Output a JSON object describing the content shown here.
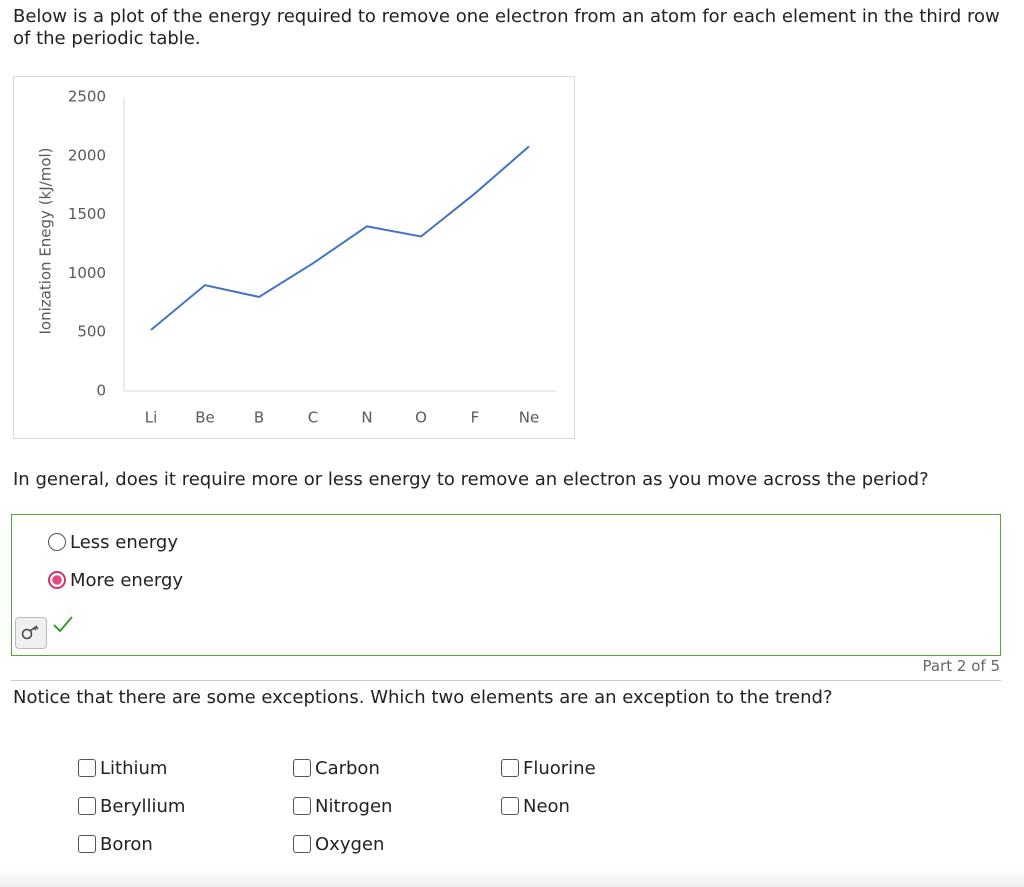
{
  "intro": "Below is a plot of the energy required to remove one electron from an atom for each element in the third row of the periodic table.",
  "chart_data": {
    "type": "line",
    "y_label": "Ionization Enegy (kJ/mol)",
    "categories": [
      "Li",
      "Be",
      "B",
      "C",
      "N",
      "O",
      "F",
      "Ne"
    ],
    "values": [
      520,
      900,
      800,
      1086,
      1400,
      1314,
      1680,
      2080
    ],
    "color": "#4472c4",
    "ylim": [
      0,
      2500
    ],
    "yticks": [
      0,
      500,
      1000,
      1500,
      2000,
      2500
    ],
    "grid": false
  },
  "question1": {
    "text": "In general, does it require more or less energy to remove an electron as you move across the period?",
    "options": [
      "Less energy",
      "More energy"
    ],
    "selected": 1
  },
  "part_label": "Part 2 of 5",
  "question2": {
    "text": "Notice that there are some exceptions. Which two elements are an exception to the trend?",
    "options": [
      "Lithium",
      "Beryllium",
      "Boron",
      "Carbon",
      "Nitrogen",
      "Oxygen",
      "Fluorine",
      "Neon"
    ]
  }
}
